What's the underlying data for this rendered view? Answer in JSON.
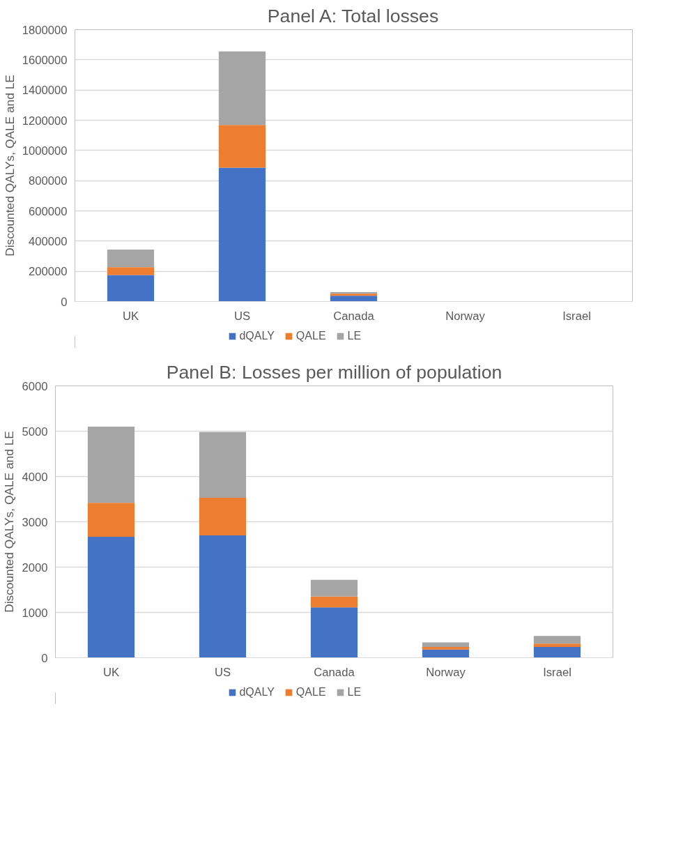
{
  "chart_data": [
    {
      "type": "bar",
      "title": "Panel A: Total losses",
      "ylabel": "Discounted QALYs, QALE and LE",
      "categories": [
        "UK",
        "US",
        "Canada",
        "Norway",
        "Israel"
      ],
      "stacked": true,
      "ylim": [
        0,
        1800000
      ],
      "yticks": [
        0,
        200000,
        400000,
        600000,
        800000,
        1000000,
        1200000,
        1400000,
        1600000,
        1800000
      ],
      "grid": "y",
      "legend": "bottom",
      "series": [
        {
          "name": "dQALY",
          "color": "#4472c4",
          "values": [
            175000,
            886000,
            38000,
            null,
            null
          ]
        },
        {
          "name": "QALE",
          "color": "#ed7d31",
          "values": [
            52000,
            283000,
            14000,
            null,
            null
          ]
        },
        {
          "name": "LE",
          "color": "#a5a5a5",
          "values": [
            117000,
            487000,
            10000,
            null,
            null
          ]
        }
      ]
    },
    {
      "type": "bar",
      "title": "Panel B: Losses per million of population",
      "ylabel": "Discounted QALYs, QALE and LE",
      "categories": [
        "UK",
        "US",
        "Canada",
        "Norway",
        "Israel"
      ],
      "stacked": true,
      "ylim": [
        0,
        6000
      ],
      "yticks": [
        0,
        1000,
        2000,
        3000,
        4000,
        5000,
        6000
      ],
      "grid": "y",
      "legend": "bottom",
      "series": [
        {
          "name": "dQALY",
          "color": "#4472c4",
          "values": [
            2670,
            2700,
            1110,
            180,
            240
          ]
        },
        {
          "name": "QALE",
          "color": "#ed7d31",
          "values": [
            750,
            830,
            240,
            60,
            70
          ]
        },
        {
          "name": "LE",
          "color": "#a5a5a5",
          "values": [
            1680,
            1450,
            370,
            100,
            170
          ]
        }
      ]
    }
  ]
}
